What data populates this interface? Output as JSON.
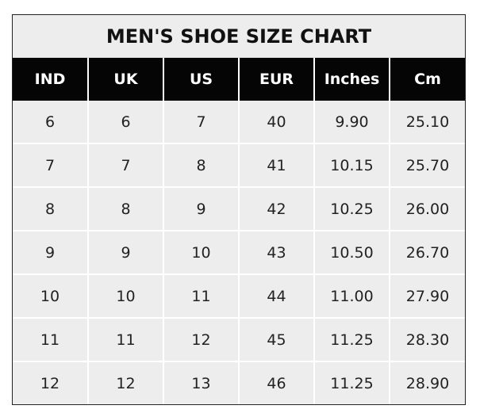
{
  "chart_data": {
    "type": "table",
    "title": "MEN'S SHOE SIZE CHART",
    "columns": [
      "IND",
      "UK",
      "US",
      "EUR",
      "Inches",
      "Cm"
    ],
    "rows": [
      [
        "6",
        "6",
        "7",
        "40",
        "9.90",
        "25.10"
      ],
      [
        "7",
        "7",
        "8",
        "41",
        "10.15",
        "25.70"
      ],
      [
        "8",
        "8",
        "9",
        "42",
        "10.25",
        "26.00"
      ],
      [
        "9",
        "9",
        "10",
        "43",
        "10.50",
        "26.70"
      ],
      [
        "10",
        "10",
        "11",
        "44",
        "11.00",
        "27.90"
      ],
      [
        "11",
        "11",
        "12",
        "45",
        "11.25",
        "28.30"
      ],
      [
        "12",
        "12",
        "13",
        "46",
        "11.25",
        "28.90"
      ]
    ]
  },
  "colors": {
    "header_bg": "#050505",
    "header_text": "#ffffff",
    "cell_bg": "#ededed",
    "grid": "#ffffff"
  }
}
